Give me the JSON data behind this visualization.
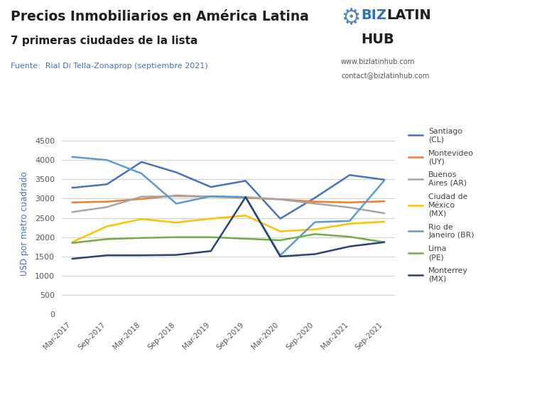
{
  "title_line1": "Precios Inmobiliarios en América Latina",
  "title_line2": "7 primeras ciudades de la lista",
  "source": "Fuente:  Rial Di Tella-Zonaprop (septiembre 2021)",
  "website": "www.bizlatinhub.com",
  "contact": "contact@bizlatinhub.com",
  "ylabel": "USD por metro cuadrado",
  "x_labels": [
    "Mar-2017",
    "Sep-2017",
    "Mar-2018",
    "Sep-2018",
    "Mar-2019",
    "Sep-2019",
    "Mar-2020",
    "Sep-2020",
    "Mar-2021",
    "Sep-2021"
  ],
  "ylim": [
    0,
    4700
  ],
  "yticks": [
    0,
    500,
    1000,
    1500,
    2000,
    2500,
    3000,
    3500,
    4000,
    4500
  ],
  "series": [
    {
      "name": "Santiago\n(CL)",
      "color": "#4472C4",
      "linewidth": 1.8,
      "values": [
        3280,
        3370,
        3950,
        3680,
        3300,
        3460,
        2480,
        3020,
        3610,
        3490
      ]
    },
    {
      "name": "Montevideo\n(UY)",
      "color": "#ED7D31",
      "linewidth": 1.8,
      "values": [
        2900,
        2920,
        2990,
        3080,
        3050,
        3020,
        2980,
        2920,
        2900,
        2930
      ]
    },
    {
      "name": "Buenos\nAires (AR)",
      "color": "#A5A5A5",
      "linewidth": 1.8,
      "values": [
        2650,
        2780,
        3050,
        3060,
        3050,
        3040,
        2980,
        2870,
        2770,
        2620
      ]
    },
    {
      "name": "Ciudad de\nMéxico\n(MX)",
      "color": "#FFC000",
      "linewidth": 1.8,
      "values": [
        1870,
        2280,
        2470,
        2380,
        2480,
        2560,
        2150,
        2200,
        2350,
        2400
      ]
    },
    {
      "name": "Rio de\nJaneiro (BR)",
      "color": "#5B9BD5",
      "linewidth": 1.8,
      "values": [
        4080,
        4000,
        3650,
        2870,
        3060,
        3040,
        1530,
        2390,
        2420,
        3470
      ]
    },
    {
      "name": "Lima\n(PE)",
      "color": "#70AD47",
      "linewidth": 1.8,
      "values": [
        1850,
        1950,
        1980,
        2000,
        2000,
        1960,
        1920,
        2080,
        2010,
        1870
      ]
    },
    {
      "name": "Monterrey\n(MX)",
      "color": "#264478",
      "linewidth": 1.8,
      "values": [
        1440,
        1530,
        1530,
        1540,
        1640,
        3040,
        1500,
        1560,
        1760,
        1870
      ]
    }
  ],
  "background_color": "#FFFFFF",
  "plot_bg_color": "#FFFFFF",
  "grid_color": "#C8C8C8",
  "title_color": "#1F1F1F",
  "source_color": "#4472C4",
  "legend_label_color": "#404040",
  "biz_color": "#2E74B5",
  "hub_color": "#1F1F1F"
}
